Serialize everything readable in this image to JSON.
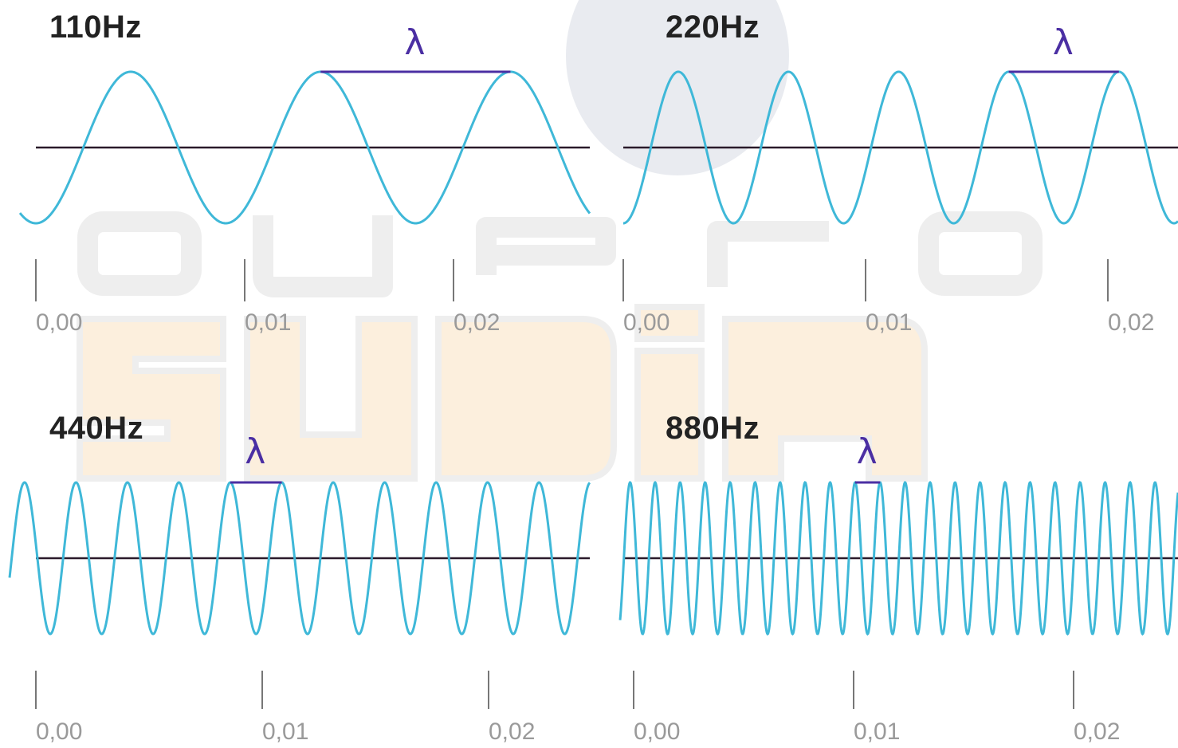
{
  "colors": {
    "wave": "#3fb8d8",
    "axis": "#2a1a2a",
    "lambda": "#4b2fa3",
    "tick": "#9a9a9a",
    "watermark_orange": "#f0a030",
    "watermark_gray": "#999999"
  },
  "watermark": {
    "top_word": "quero",
    "main_word": "SUBiR"
  },
  "panels": [
    {
      "id": "110",
      "label": "110Hz",
      "lambda_symbol": "λ",
      "frequency_hz": 110,
      "ticks": [
        "0,00",
        "0,01",
        "0,02"
      ],
      "tick_values": [
        0,
        0.01,
        0.02
      ]
    },
    {
      "id": "220",
      "label": "220Hz",
      "lambda_symbol": "λ",
      "frequency_hz": 220,
      "ticks": [
        "0,00",
        "0,01",
        "0,02"
      ],
      "tick_values": [
        0,
        0.01,
        0.02
      ]
    },
    {
      "id": "440",
      "label": "440Hz",
      "lambda_symbol": "λ",
      "frequency_hz": 440,
      "ticks": [
        "0,00",
        "0,01",
        "0,02"
      ],
      "tick_values": [
        0,
        0.01,
        0.02
      ]
    },
    {
      "id": "880",
      "label": "880Hz",
      "lambda_symbol": "λ",
      "frequency_hz": 880,
      "ticks": [
        "0,00",
        "0,01",
        "0,02"
      ],
      "tick_values": [
        0,
        0.01,
        0.02
      ]
    }
  ]
}
